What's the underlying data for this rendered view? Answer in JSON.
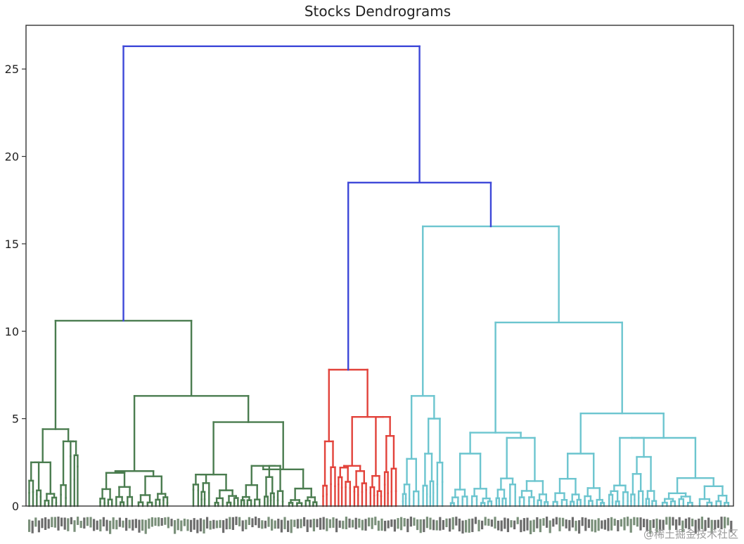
{
  "chart_data": {
    "type": "dendrogram",
    "title": "Stocks Dendrograms",
    "xlabel": "",
    "ylabel": "",
    "ylim": [
      0,
      27.5
    ],
    "yticks": [
      0,
      5,
      10,
      15,
      20,
      25
    ],
    "grid": false,
    "legend": "none",
    "colors": {
      "green": "#4a7c4f",
      "red": "#e2423a",
      "cyan": "#6cc5cf",
      "blue": "#3d47d8",
      "axis": "#333333"
    },
    "clusters": [
      {
        "color": "green",
        "leaves": 90,
        "link_height": 10.6
      },
      {
        "color": "red",
        "leaves": 24,
        "link_height": 7.8
      },
      {
        "color": "cyan",
        "leaves": 100,
        "link_height": 16.0
      }
    ],
    "merges": [
      {
        "clusters": [
          "red",
          "cyan"
        ],
        "height": 18.5
      },
      {
        "clusters": [
          "green",
          "red+cyan"
        ],
        "height": 26.3
      }
    ],
    "sub_merges": {
      "green": [
        4.4,
        2.5,
        3.7,
        6.3,
        2.0,
        4.8,
        2.0,
        2.3
      ],
      "red": [
        3.7,
        5.1,
        1.8,
        2.5
      ],
      "cyan": [
        6.3,
        2.7,
        5.0,
        10.5,
        4.2,
        5.3,
        3.0,
        3.9,
        1.6
      ]
    },
    "leaf_labels": "dense overlapping stock labels (illegible)"
  },
  "watermark": "@稀土掘金技术社区"
}
